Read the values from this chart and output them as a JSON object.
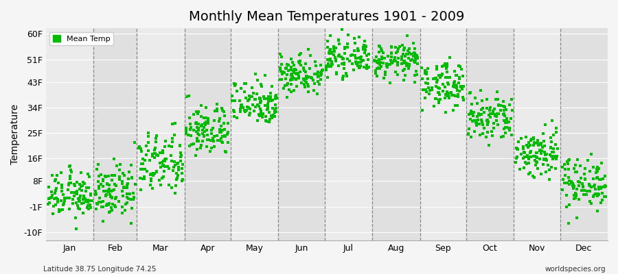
{
  "title": "Monthly Mean Temperatures 1901 - 2009",
  "ylabel": "Temperature",
  "xlabel_months": [
    "Jan",
    "Feb",
    "Mar",
    "Apr",
    "May",
    "Jun",
    "Jul",
    "Aug",
    "Sep",
    "Oct",
    "Nov",
    "Dec"
  ],
  "ytick_values": [
    -10,
    -1,
    8,
    16,
    25,
    34,
    43,
    51,
    60
  ],
  "ytick_labels": [
    "-10F",
    "-1F",
    "8F",
    "16F",
    "25F",
    "34F",
    "43F",
    "51F",
    "60F"
  ],
  "ylim": [
    -13,
    62
  ],
  "xlim": [
    0,
    365
  ],
  "dot_color": "#00bb00",
  "dot_size": 7,
  "background_color": "#f5f5f5",
  "band_colors": [
    "#ebebeb",
    "#e0e0e0"
  ],
  "legend_label": "Mean Temp",
  "footer_left": "Latitude 38.75 Longitude 74.25",
  "footer_right": "worldspecies.org",
  "num_years": 109,
  "monthly_means_f": [
    3.0,
    4.0,
    14.0,
    26.0,
    36.0,
    46.0,
    51.5,
    50.5,
    42.0,
    30.0,
    18.0,
    7.5
  ],
  "monthly_stds_f": [
    4.0,
    4.5,
    5.5,
    4.5,
    4.0,
    3.5,
    3.0,
    3.0,
    4.0,
    4.5,
    4.5,
    4.5
  ],
  "month_days": [
    31,
    28,
    31,
    30,
    31,
    30,
    31,
    31,
    30,
    31,
    30,
    31
  ],
  "seed": 12345
}
